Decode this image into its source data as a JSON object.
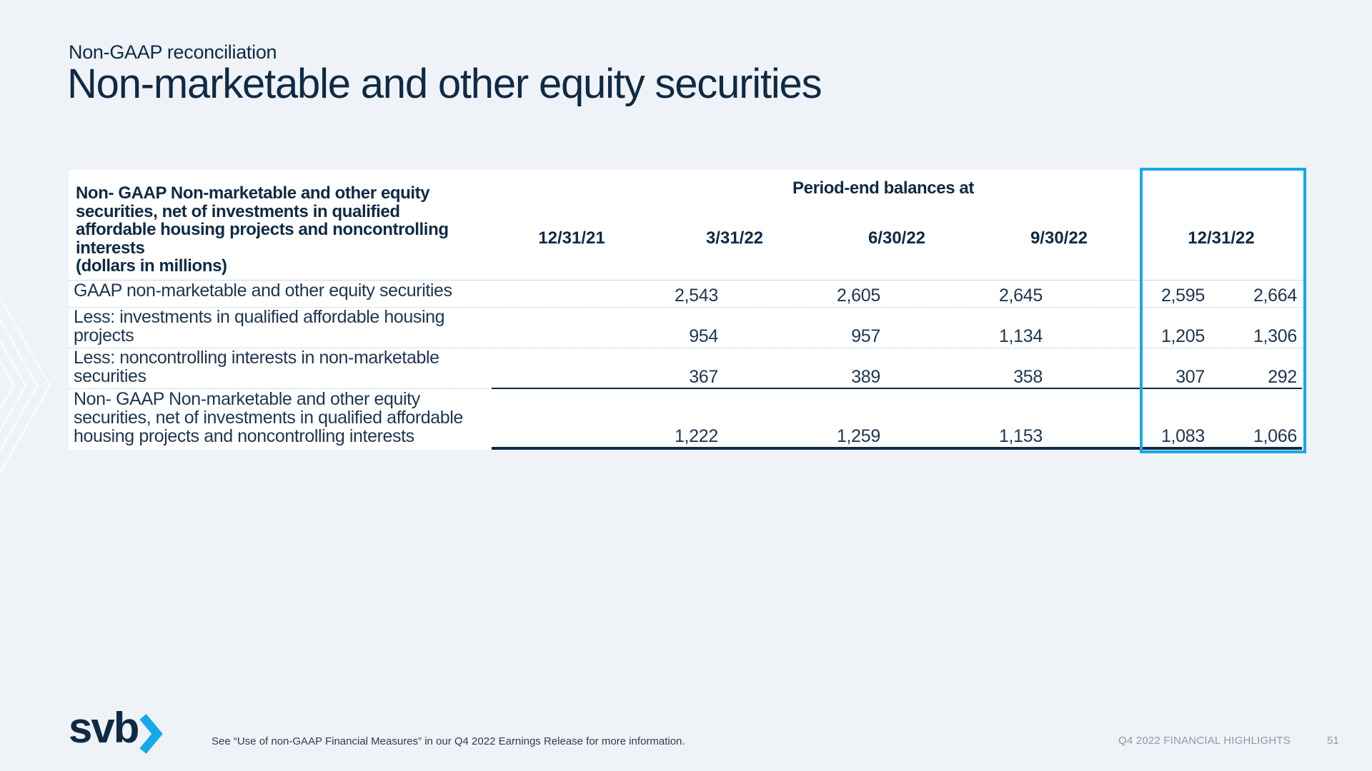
{
  "slide": {
    "supertitle": "Non-GAAP reconciliation",
    "title": "Non-marketable and other equity securities"
  },
  "table": {
    "header_label_lines": [
      "Non- GAAP Non-marketable and other equity",
      "securities, net of investments in qualified",
      "affordable housing projects and noncontrolling",
      "interests",
      "(dollars in millions)"
    ],
    "period_header": "Period-end balances at",
    "columns": [
      "12/31/21",
      "3/31/22",
      "6/30/22",
      "9/30/22",
      "12/31/22"
    ],
    "highlighted_column": "12/31/22",
    "highlight_color": "#15a9e8",
    "rows": [
      {
        "label_lines": [
          "GAAP non-marketable and other equity securities"
        ],
        "values": [
          "2,543",
          "2,605",
          "2,645",
          "2,595",
          "2,664"
        ]
      },
      {
        "label_lines": [
          "Less: investments in qualified affordable housing",
          "projects"
        ],
        "values": [
          "954",
          "957",
          "1,134",
          "1,205",
          "1,306"
        ]
      },
      {
        "label_lines": [
          "Less: noncontrolling interests in non-marketable",
          "securities"
        ],
        "values": [
          "367",
          "389",
          "358",
          "307",
          "292"
        ]
      },
      {
        "label_lines": [
          "Non- GAAP Non-marketable and other equity",
          "securities, net of investments in qualified affordable",
          "housing projects and noncontrolling interests"
        ],
        "values": [
          "1,222",
          "1,259",
          "1,153",
          "1,083",
          "1,066"
        ]
      }
    ]
  },
  "footer": {
    "logo_text": "svb",
    "logo_icon": "chevron-right-icon",
    "brand_color": "#0f2a44",
    "accent_color": "#15a9e8",
    "footnote": "See “Use of non-GAAP Financial Measures” in our Q4 2022 Earnings Release for more information.",
    "report_name": "Q4 2022 FINANCIAL HIGHLIGHTS",
    "page_number": "51"
  }
}
